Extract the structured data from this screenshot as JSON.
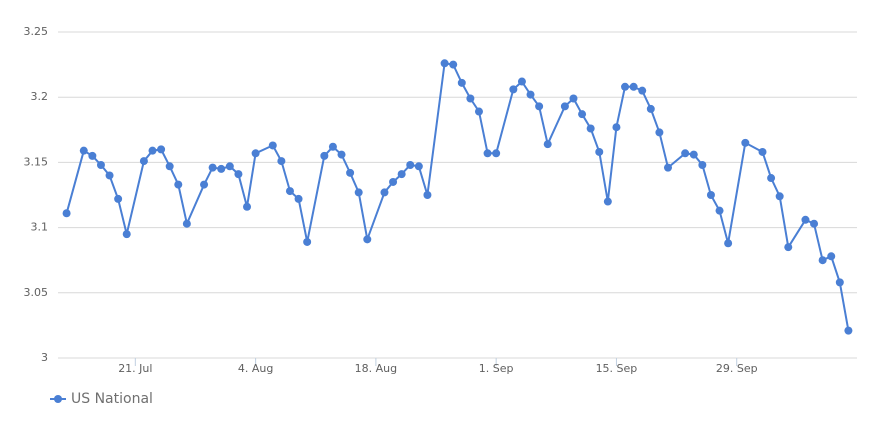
{
  "chart_data": {
    "type": "line",
    "x": [
      "07-13",
      "07-15",
      "07-16",
      "07-17",
      "07-18",
      "07-19",
      "07-20",
      "07-22",
      "07-23",
      "07-24",
      "07-25",
      "07-26",
      "07-27",
      "07-29",
      "07-30",
      "07-31",
      "08-01",
      "08-02",
      "08-03",
      "08-04",
      "08-06",
      "08-07",
      "08-08",
      "08-09",
      "08-10",
      "08-12",
      "08-13",
      "08-14",
      "08-15",
      "08-16",
      "08-17",
      "08-19",
      "08-20",
      "08-21",
      "08-22",
      "08-23",
      "08-24",
      "08-26",
      "08-27",
      "08-28",
      "08-29",
      "08-30",
      "08-31",
      "09-01",
      "09-03",
      "09-04",
      "09-05",
      "09-06",
      "09-07",
      "09-09",
      "09-10",
      "09-11",
      "09-12",
      "09-13",
      "09-14",
      "09-15",
      "09-16",
      "09-17",
      "09-18",
      "09-19",
      "09-20",
      "09-21",
      "09-23",
      "09-24",
      "09-25",
      "09-26",
      "09-27",
      "09-28",
      "09-30",
      "10-02",
      "10-03",
      "10-04",
      "10-05",
      "10-07",
      "10-08",
      "10-09",
      "10-10",
      "10-11",
      "10-12"
    ],
    "series": [
      {
        "name": "US National",
        "color": "#4a7fd4",
        "values": [
          3.111,
          3.159,
          3.155,
          3.148,
          3.14,
          3.122,
          3.095,
          3.151,
          3.159,
          3.16,
          3.147,
          3.133,
          3.103,
          3.133,
          3.146,
          3.145,
          3.147,
          3.141,
          3.116,
          3.157,
          3.163,
          3.151,
          3.128,
          3.122,
          3.089,
          3.155,
          3.162,
          3.156,
          3.142,
          3.127,
          3.091,
          3.127,
          3.135,
          3.141,
          3.148,
          3.147,
          3.125,
          3.226,
          3.225,
          3.211,
          3.199,
          3.189,
          3.157,
          3.157,
          3.206,
          3.212,
          3.202,
          3.193,
          3.164,
          3.193,
          3.199,
          3.187,
          3.176,
          3.158,
          3.12,
          3.177,
          3.208,
          3.208,
          3.205,
          3.191,
          3.173,
          3.146,
          3.157,
          3.156,
          3.148,
          3.125,
          3.113,
          3.088,
          3.165,
          3.158,
          3.138,
          3.124,
          3.085,
          3.106,
          3.103,
          3.075,
          3.078,
          3.058,
          3.021
        ]
      }
    ],
    "xlim": [
      "07-12",
      "10-13"
    ],
    "xticks": [
      {
        "value": "07-21",
        "label": "21. Jul"
      },
      {
        "value": "08-04",
        "label": "4. Aug"
      },
      {
        "value": "08-18",
        "label": "18. Aug"
      },
      {
        "value": "09-01",
        "label": "1. Sep"
      },
      {
        "value": "09-15",
        "label": "15. Sep"
      },
      {
        "value": "09-29",
        "label": "29. Sep"
      }
    ],
    "ylim": [
      3,
      3.25
    ],
    "yticks": [
      3,
      3.05,
      3.1,
      3.15,
      3.2,
      3.25
    ],
    "grid": true,
    "legend": "bottom-left"
  }
}
